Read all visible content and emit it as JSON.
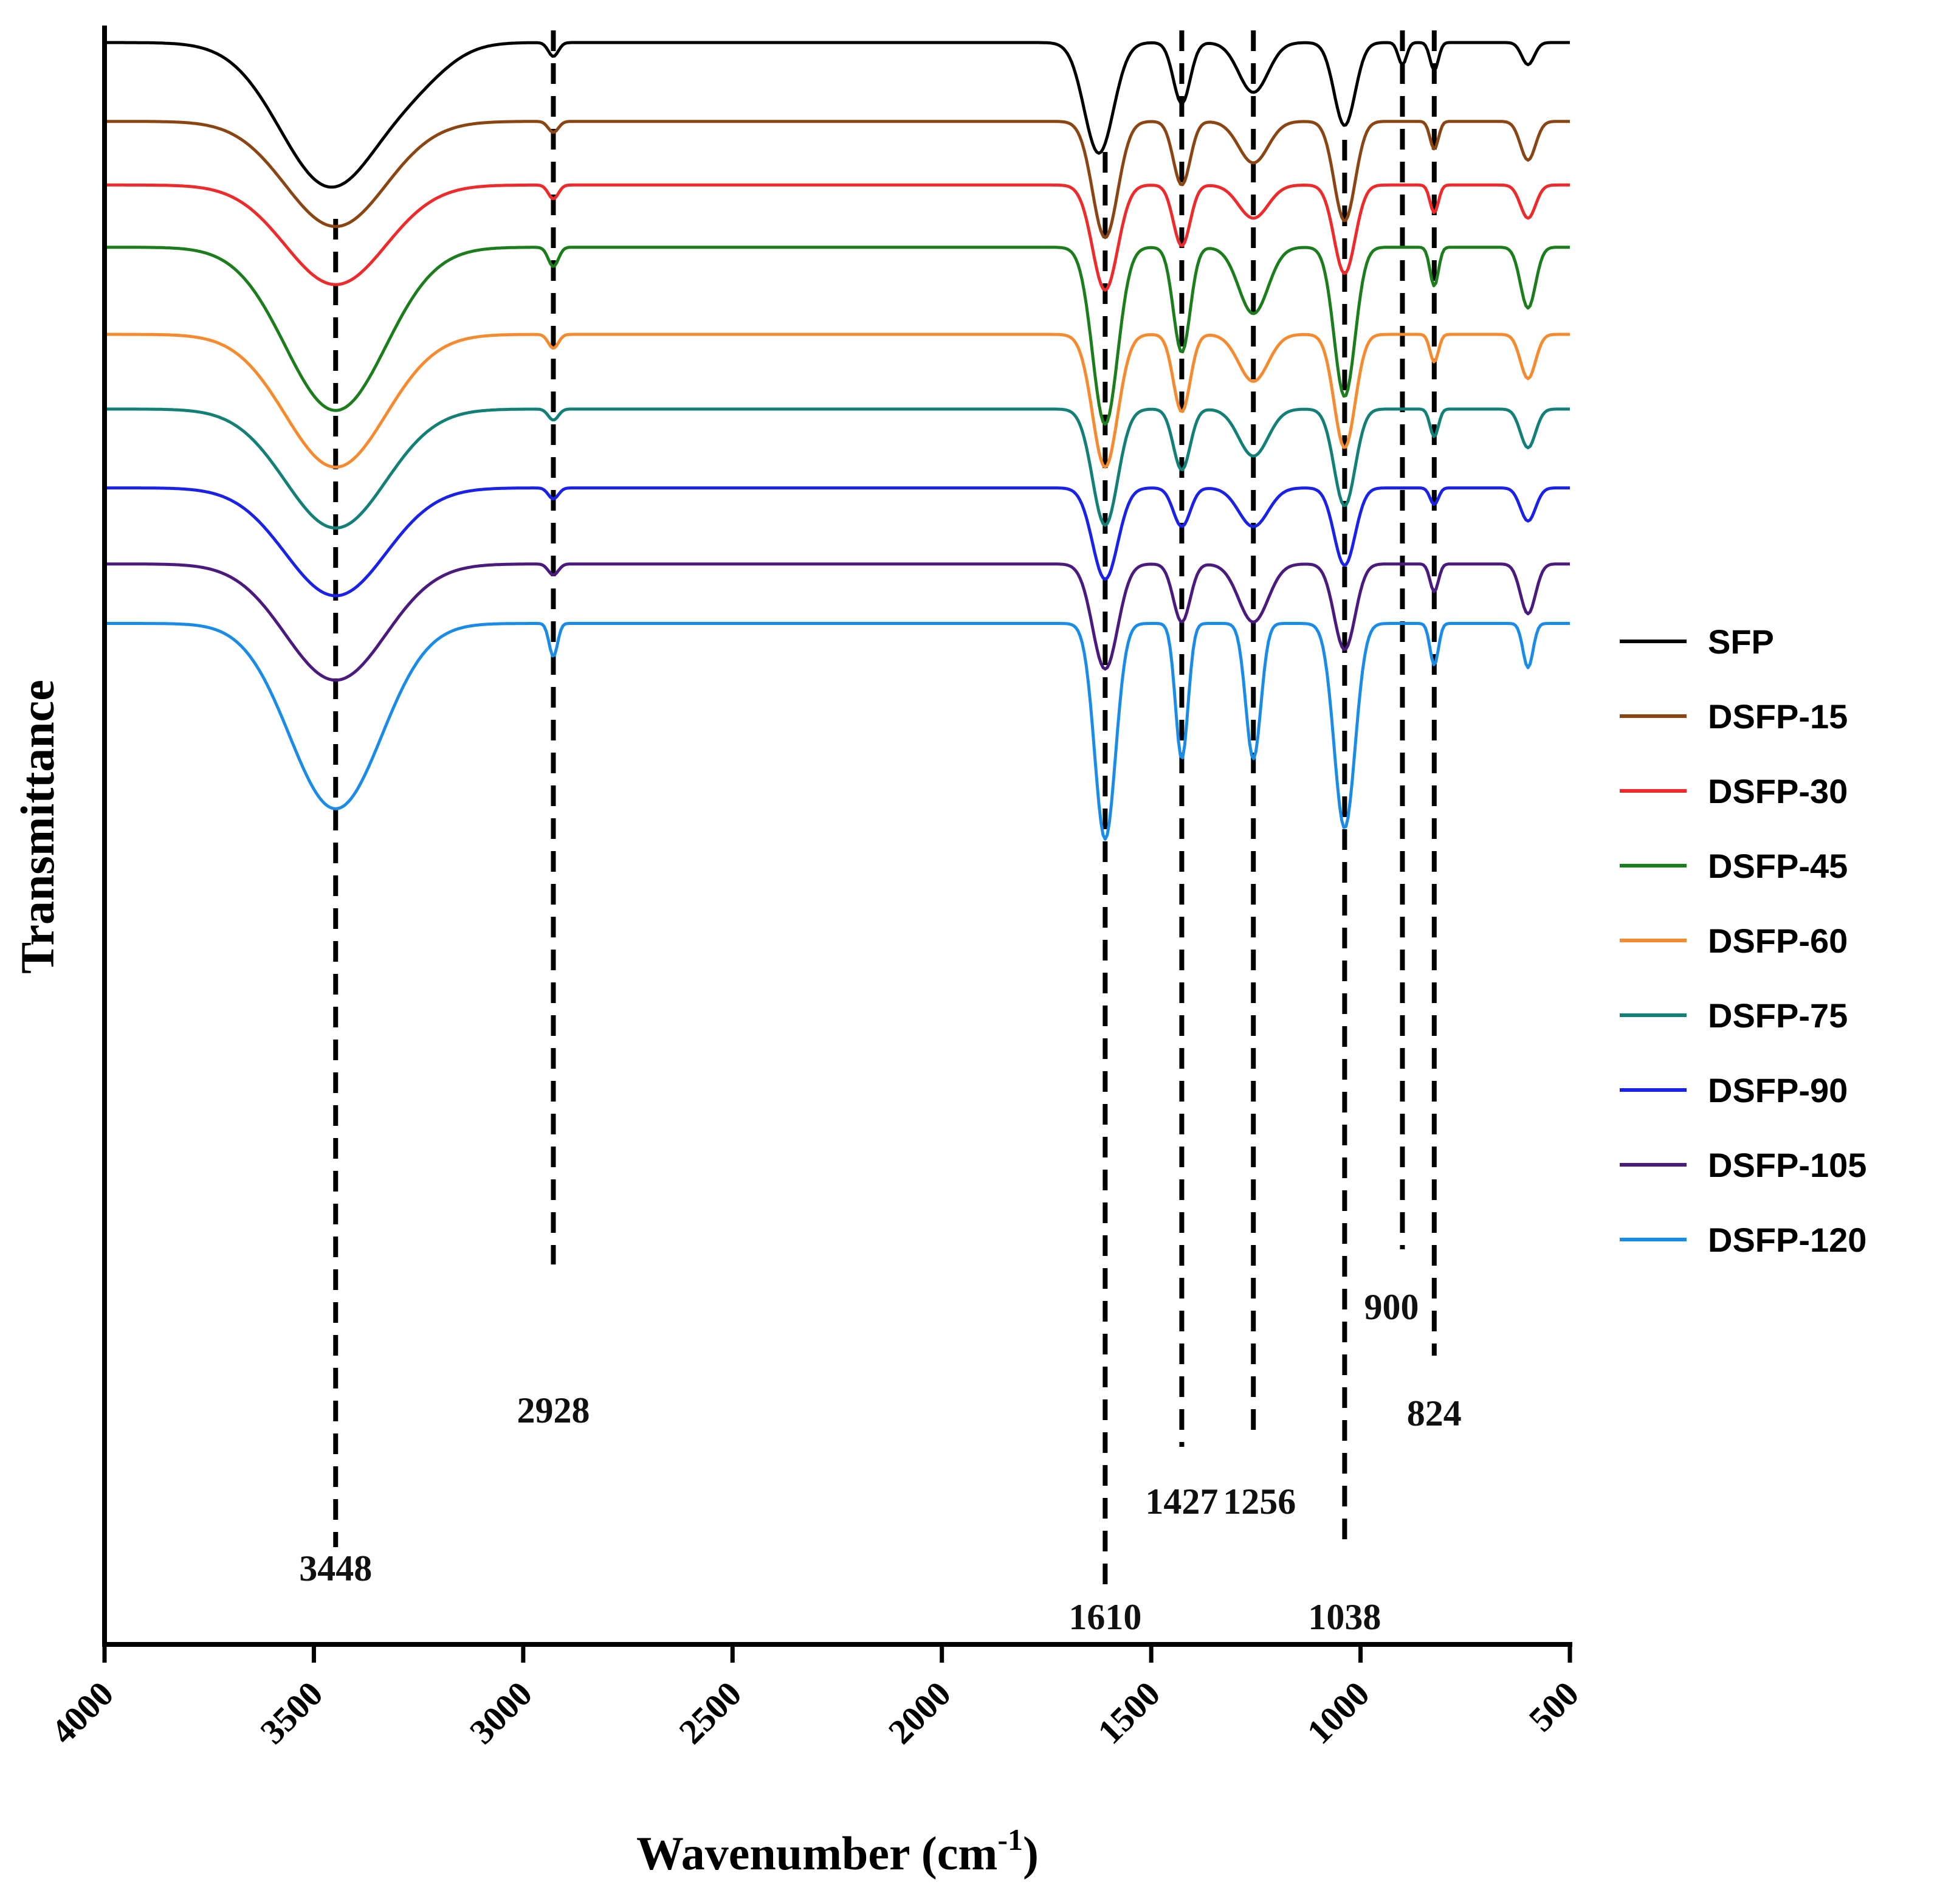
{
  "chart_data": {
    "type": "line",
    "title": "",
    "xlabel_main": "Wavenumber (cm",
    "xlabel_sup": "-1",
    "xlabel_tail": ")",
    "ylabel": "Transmittance",
    "xlim": [
      4000,
      500
    ],
    "x_reversed": true,
    "xticks": [
      4000,
      3500,
      3000,
      2500,
      2000,
      1500,
      1000,
      500
    ],
    "xtick_labels": [
      "4000",
      "3500",
      "3000",
      "2500",
      "2000",
      "1500",
      "1000",
      "500"
    ],
    "y_units": "arbitrary (stacked offsets)",
    "legend_position": "right",
    "series": [
      {
        "name": "SFP",
        "color": "#000000",
        "baseline": 0.0,
        "bands": [
          [
            3460,
            0.52,
            120
          ],
          [
            3250,
            0.08,
            80
          ],
          [
            2928,
            0.05,
            12
          ],
          [
            1625,
            0.4,
            35
          ],
          [
            1427,
            0.22,
            20
          ],
          [
            1256,
            0.18,
            35
          ],
          [
            1038,
            0.3,
            25
          ],
          [
            900,
            0.08,
            10
          ],
          [
            824,
            0.1,
            10
          ],
          [
            600,
            0.08,
            15
          ]
        ]
      },
      {
        "name": "DSFP-15",
        "color": "#8B4513",
        "baseline": 0.285,
        "bands": [
          [
            3448,
            0.38,
            120
          ],
          [
            2928,
            0.04,
            12
          ],
          [
            1610,
            0.42,
            30
          ],
          [
            1427,
            0.23,
            20
          ],
          [
            1256,
            0.15,
            35
          ],
          [
            1038,
            0.36,
            25
          ],
          [
            824,
            0.1,
            10
          ],
          [
            600,
            0.14,
            18
          ]
        ]
      },
      {
        "name": "DSFP-30",
        "color": "#EE2A2A",
        "baseline": 0.515,
        "bands": [
          [
            3448,
            0.36,
            120
          ],
          [
            2928,
            0.05,
            12
          ],
          [
            1610,
            0.38,
            30
          ],
          [
            1427,
            0.22,
            20
          ],
          [
            1256,
            0.12,
            35
          ],
          [
            1038,
            0.32,
            25
          ],
          [
            824,
            0.1,
            10
          ],
          [
            600,
            0.12,
            18
          ]
        ]
      },
      {
        "name": "DSFP-45",
        "color": "#1B7D1B",
        "baseline": 0.74,
        "bands": [
          [
            3448,
            0.59,
            120
          ],
          [
            2928,
            0.07,
            12
          ],
          [
            1610,
            0.64,
            30
          ],
          [
            1427,
            0.38,
            20
          ],
          [
            1256,
            0.24,
            35
          ],
          [
            1038,
            0.54,
            25
          ],
          [
            824,
            0.14,
            10
          ],
          [
            600,
            0.22,
            18
          ]
        ]
      },
      {
        "name": "DSFP-60",
        "color": "#F68A2E",
        "baseline": 1.055,
        "bands": [
          [
            3448,
            0.48,
            120
          ],
          [
            2928,
            0.05,
            12
          ],
          [
            1610,
            0.48,
            30
          ],
          [
            1427,
            0.28,
            20
          ],
          [
            1256,
            0.17,
            35
          ],
          [
            1038,
            0.41,
            25
          ],
          [
            824,
            0.1,
            10
          ],
          [
            600,
            0.16,
            18
          ]
        ]
      },
      {
        "name": "DSFP-75",
        "color": "#138078",
        "baseline": 1.325,
        "bands": [
          [
            3448,
            0.43,
            120
          ],
          [
            2928,
            0.04,
            12
          ],
          [
            1610,
            0.42,
            30
          ],
          [
            1427,
            0.22,
            20
          ],
          [
            1256,
            0.17,
            35
          ],
          [
            1038,
            0.35,
            25
          ],
          [
            824,
            0.1,
            10
          ],
          [
            600,
            0.14,
            18
          ]
        ]
      },
      {
        "name": "DSFP-90",
        "color": "#1A21E8",
        "baseline": 1.61,
        "bands": [
          [
            3448,
            0.39,
            120
          ],
          [
            2928,
            0.04,
            12
          ],
          [
            1610,
            0.33,
            30
          ],
          [
            1427,
            0.14,
            20
          ],
          [
            1256,
            0.14,
            35
          ],
          [
            1038,
            0.28,
            25
          ],
          [
            824,
            0.06,
            10
          ],
          [
            600,
            0.12,
            18
          ]
        ]
      },
      {
        "name": "DSFP-105",
        "color": "#4A1A7E",
        "baseline": 1.885,
        "bands": [
          [
            3448,
            0.42,
            120
          ],
          [
            2928,
            0.04,
            12
          ],
          [
            1610,
            0.38,
            30
          ],
          [
            1427,
            0.21,
            20
          ],
          [
            1256,
            0.21,
            35
          ],
          [
            1038,
            0.31,
            25
          ],
          [
            824,
            0.1,
            10
          ],
          [
            600,
            0.18,
            18
          ]
        ]
      },
      {
        "name": "DSFP-120",
        "color": "#1A8CE8",
        "baseline": 2.1,
        "bands": [
          [
            3448,
            0.67,
            110
          ],
          [
            2928,
            0.12,
            10
          ],
          [
            1610,
            0.78,
            25
          ],
          [
            1427,
            0.49,
            15
          ],
          [
            1256,
            0.49,
            18
          ],
          [
            1038,
            0.74,
            25
          ],
          [
            824,
            0.15,
            10
          ],
          [
            600,
            0.16,
            12
          ]
        ]
      }
    ],
    "annotations": [
      {
        "wavenumber": 3448,
        "label": "3448"
      },
      {
        "wavenumber": 2928,
        "label": "2928"
      },
      {
        "wavenumber": 1610,
        "label": "1610"
      },
      {
        "wavenumber": 1427,
        "label": "1427"
      },
      {
        "wavenumber": 1256,
        "label": "1256"
      },
      {
        "wavenumber": 1038,
        "label": "1038"
      },
      {
        "wavenumber": 900,
        "label": "900"
      },
      {
        "wavenumber": 824,
        "label": "824"
      }
    ]
  }
}
